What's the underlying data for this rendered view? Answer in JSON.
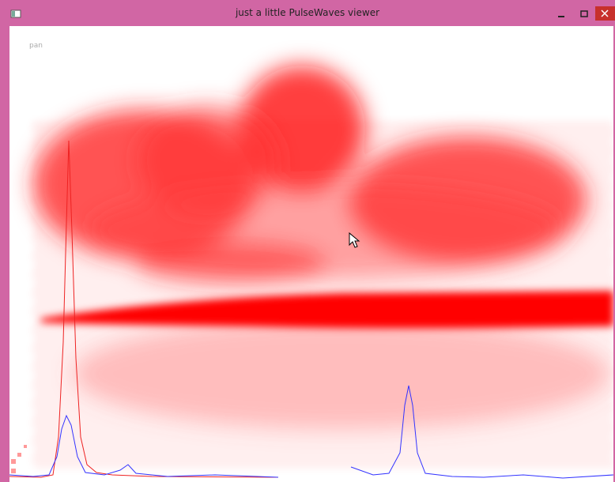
{
  "window": {
    "title": "just a little PulseWaves viewer"
  },
  "viewer": {
    "mode_label": "pan"
  }
}
